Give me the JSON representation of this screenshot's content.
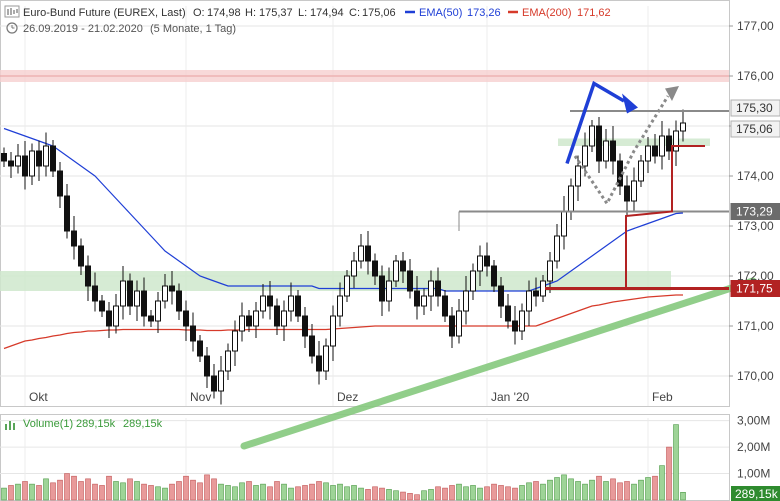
{
  "header": {
    "instrument": "Euro-Bund Future (EUREX, Last)",
    "ohlc": [
      {
        "label": "O:",
        "value": "174,98"
      },
      {
        "label": "H:",
        "value": "175,37"
      },
      {
        "label": "L:",
        "value": "174,94"
      },
      {
        "label": "C:",
        "value": "175,06"
      }
    ],
    "ema50": {
      "label": "EMA(50)",
      "value": "173,26",
      "color": "#1f3fd6"
    },
    "ema200": {
      "label": "EMA(200)",
      "value": "171,62",
      "color": "#d63a2a"
    },
    "range": "26.09.2019 - 21.02.2020",
    "period": "(5 Monate, 1 Tag)"
  },
  "volume_header": {
    "label": "Volume(1)",
    "value1": "289,15k",
    "value2": "289,15k"
  },
  "x_axis_labels": [
    {
      "label": "Okt",
      "day": 3
    },
    {
      "label": "Nov",
      "day": 26
    },
    {
      "label": "Dez",
      "day": 47
    },
    {
      "label": "Jan '20",
      "day": 69
    },
    {
      "label": "Feb",
      "day": 92
    }
  ],
  "chart_data": {
    "type": "candlestick",
    "x_range": [
      "26.09.2019",
      "21.02.2020"
    ],
    "ylim": [
      169.4,
      177.4
    ],
    "yticks": [
      {
        "value": 170,
        "label": "170,00"
      },
      {
        "value": 171,
        "label": "171,00"
      },
      {
        "value": 172,
        "label": "172,00"
      },
      {
        "value": 173,
        "label": "173,00"
      },
      {
        "value": 174,
        "label": "174,00"
      },
      {
        "value": 175,
        "label": "175,00"
      },
      {
        "value": 176,
        "label": "176,00"
      },
      {
        "value": 177,
        "label": "177,00"
      }
    ],
    "price_tags": [
      {
        "label": "175,30",
        "value": 175.3,
        "style": "light"
      },
      {
        "label": "175,06",
        "value": 175.06,
        "style": "light"
      },
      {
        "label": "173,29",
        "value": 173.29,
        "style": "dark"
      },
      {
        "label": "171,75",
        "value": 171.75,
        "style": "red"
      }
    ],
    "closes": [
      174.3,
      174.2,
      174.4,
      174.0,
      174.5,
      174.2,
      174.6,
      174.1,
      173.6,
      172.9,
      172.6,
      172.2,
      171.8,
      171.5,
      171.3,
      171.0,
      171.4,
      171.9,
      171.4,
      171.7,
      171.2,
      171.1,
      171.5,
      171.8,
      171.7,
      171.3,
      171.0,
      170.7,
      170.4,
      170.0,
      169.7,
      170.1,
      170.5,
      170.9,
      171.2,
      171.0,
      171.3,
      171.6,
      171.4,
      171.0,
      171.3,
      171.6,
      171.2,
      170.8,
      170.4,
      170.1,
      170.6,
      171.2,
      171.6,
      172.0,
      172.3,
      172.6,
      172.3,
      172.0,
      171.5,
      171.9,
      172.3,
      172.1,
      171.7,
      171.4,
      171.6,
      171.9,
      171.6,
      171.2,
      170.8,
      171.3,
      171.7,
      172.1,
      172.4,
      172.2,
      171.8,
      171.4,
      171.1,
      170.9,
      171.3,
      171.7,
      171.6,
      171.9,
      172.3,
      172.8,
      173.3,
      173.8,
      174.2,
      174.6,
      175.0,
      174.3,
      174.7,
      174.3,
      173.8,
      173.5,
      173.9,
      174.3,
      174.6,
      174.4,
      174.8,
      174.5,
      174.9,
      175.06
    ],
    "ema50": [
      174.95,
      174.9,
      174.85,
      174.8,
      174.75,
      174.7,
      174.65,
      174.6,
      174.5,
      174.4,
      174.3,
      174.2,
      174.1,
      174.0,
      173.85,
      173.7,
      173.55,
      173.4,
      173.25,
      173.1,
      172.95,
      172.8,
      172.65,
      172.5,
      172.4,
      172.3,
      172.2,
      172.1,
      172.0,
      171.95,
      171.9,
      171.85,
      171.8,
      171.8,
      171.8,
      171.8,
      171.8,
      171.8,
      171.8,
      171.8,
      171.8,
      171.8,
      171.8,
      171.8,
      171.8,
      171.75,
      171.75,
      171.75,
      171.75,
      171.75,
      171.75,
      171.75,
      171.75,
      171.75,
      171.75,
      171.75,
      171.75,
      171.75,
      171.75,
      171.75,
      171.75,
      171.75,
      171.75,
      171.7,
      171.7,
      171.7,
      171.7,
      171.7,
      171.7,
      171.7,
      171.7,
      171.7,
      171.7,
      171.7,
      171.7,
      171.7,
      171.75,
      171.8,
      171.85,
      171.9,
      172.0,
      172.1,
      172.2,
      172.3,
      172.4,
      172.5,
      172.6,
      172.7,
      172.8,
      172.9,
      172.95,
      173.0,
      173.05,
      173.1,
      173.15,
      173.2,
      173.25,
      173.26
    ],
    "ema200": [
      170.55,
      170.6,
      170.65,
      170.7,
      170.72,
      170.75,
      170.77,
      170.8,
      170.82,
      170.85,
      170.87,
      170.88,
      170.9,
      170.9,
      170.91,
      170.92,
      170.92,
      170.93,
      170.93,
      170.93,
      170.93,
      170.93,
      170.93,
      170.93,
      170.93,
      170.93,
      170.92,
      170.92,
      170.92,
      170.91,
      170.91,
      170.91,
      170.92,
      170.92,
      170.92,
      170.93,
      170.93,
      170.93,
      170.93,
      170.93,
      170.93,
      170.93,
      170.93,
      170.93,
      170.93,
      170.93,
      170.93,
      170.94,
      170.95,
      170.96,
      170.97,
      170.98,
      170.99,
      171.0,
      171.0,
      171.0,
      171.0,
      171.0,
      171.0,
      171.0,
      171.0,
      171.0,
      171.0,
      171.0,
      171.0,
      171.0,
      171.0,
      171.0,
      171.0,
      171.0,
      171.0,
      171.0,
      171.0,
      171.0,
      171.0,
      171.0,
      171.0,
      171.05,
      171.1,
      171.15,
      171.2,
      171.25,
      171.3,
      171.35,
      171.4,
      171.42,
      171.45,
      171.48,
      171.5,
      171.52,
      171.54,
      171.56,
      171.58,
      171.59,
      171.6,
      171.61,
      171.62,
      171.62
    ],
    "volume": {
      "ylim": [
        0,
        3.1
      ],
      "yticks": [
        {
          "value": 1,
          "label": "1,00M"
        },
        {
          "value": 2,
          "label": "2,00M"
        },
        {
          "value": 3,
          "label": "3,00M"
        }
      ],
      "last_label": "289,15k",
      "values_m": [
        0.45,
        0.55,
        0.6,
        0.7,
        0.6,
        0.55,
        0.8,
        0.65,
        0.75,
        1.0,
        0.9,
        0.7,
        0.8,
        0.6,
        0.55,
        0.9,
        0.7,
        0.65,
        0.8,
        0.7,
        0.6,
        0.55,
        0.5,
        0.45,
        0.6,
        0.7,
        0.9,
        0.75,
        0.65,
        0.95,
        0.8,
        0.6,
        0.55,
        0.5,
        0.65,
        0.7,
        0.55,
        0.6,
        0.5,
        0.7,
        0.6,
        0.45,
        0.5,
        0.55,
        0.6,
        0.7,
        0.65,
        0.55,
        0.6,
        0.5,
        0.55,
        0.45,
        0.4,
        0.5,
        0.45,
        0.4,
        0.35,
        0.3,
        0.25,
        0.2,
        0.35,
        0.4,
        0.5,
        0.45,
        0.55,
        0.6,
        0.5,
        0.55,
        0.45,
        0.5,
        0.6,
        0.55,
        0.5,
        0.45,
        0.55,
        0.65,
        0.7,
        0.6,
        0.75,
        0.85,
        0.95,
        0.8,
        0.7,
        0.6,
        0.75,
        0.9,
        0.7,
        0.8,
        0.65,
        0.7,
        0.6,
        0.75,
        0.85,
        0.9,
        1.3,
        2.0,
        2.85,
        0.29
      ]
    },
    "annotations": {
      "hlines": [
        176.0,
        175.3,
        173.29,
        171.75
      ],
      "zones": [
        [
          171.7,
          172.1
        ],
        [
          174.6,
          174.75
        ]
      ],
      "trendline": [
        [
          40,
          169.0
        ],
        [
          107,
          171.9
        ]
      ]
    }
  }
}
